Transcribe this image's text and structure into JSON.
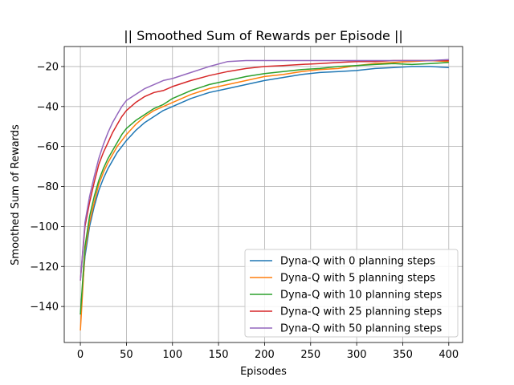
{
  "chart_data": {
    "type": "line",
    "title": "|| Smoothed Sum of Rewards per Episode ||",
    "xlabel": "Episodes",
    "ylabel": "Smoothed Sum of Rewards",
    "xlim": [
      -17.5,
      415
    ],
    "ylim": [
      -158,
      -10
    ],
    "xticks": [
      0,
      50,
      100,
      150,
      200,
      250,
      300,
      350,
      400
    ],
    "yticks": [
      -140,
      -120,
      -100,
      -80,
      -60,
      -40,
      -20
    ],
    "grid": true,
    "legend_position": "lower-right",
    "series": [
      {
        "name": "Dyna-Q with 0 planning steps",
        "color": "#1f77b4",
        "x": [
          0,
          5,
          10,
          15,
          20,
          25,
          30,
          35,
          40,
          45,
          50,
          60,
          70,
          80,
          90,
          100,
          120,
          140,
          160,
          180,
          200,
          220,
          240,
          260,
          280,
          300,
          320,
          340,
          360,
          380,
          400
        ],
        "y": [
          -144,
          -115,
          -100,
          -90,
          -82,
          -76,
          -71,
          -67,
          -63,
          -60,
          -57,
          -52,
          -48,
          -45,
          -42,
          -40,
          -36,
          -33,
          -31,
          -29,
          -27,
          -25.5,
          -24,
          -23,
          -22.5,
          -22,
          -21,
          -20.5,
          -20,
          -20,
          -20.5
        ]
      },
      {
        "name": "Dyna-Q with 5 planning steps",
        "color": "#ff7f0e",
        "x": [
          0,
          5,
          10,
          15,
          20,
          25,
          30,
          35,
          40,
          45,
          50,
          60,
          70,
          80,
          90,
          100,
          120,
          140,
          160,
          180,
          200,
          220,
          240,
          260,
          280,
          300,
          320,
          340,
          360,
          380,
          400
        ],
        "y": [
          -152,
          -112,
          -98,
          -88,
          -79,
          -73,
          -68,
          -64,
          -60,
          -57,
          -54,
          -49,
          -45,
          -42,
          -40,
          -38,
          -34,
          -31,
          -29,
          -27,
          -25,
          -24,
          -22.5,
          -21.5,
          -21,
          -19.5,
          -18.5,
          -18,
          -17.5,
          -17,
          -17.5
        ]
      },
      {
        "name": "Dyna-Q with 10 planning steps",
        "color": "#2ca02c",
        "x": [
          0,
          5,
          10,
          15,
          20,
          25,
          30,
          35,
          40,
          45,
          50,
          60,
          70,
          80,
          90,
          100,
          120,
          140,
          160,
          180,
          200,
          220,
          240,
          260,
          280,
          300,
          320,
          340,
          360,
          380,
          400
        ],
        "y": [
          -144,
          -110,
          -95,
          -85,
          -77,
          -71,
          -66,
          -62,
          -58,
          -54,
          -51,
          -47,
          -44,
          -41,
          -39,
          -36,
          -32,
          -29,
          -27,
          -25,
          -23.5,
          -22.5,
          -21.5,
          -21,
          -20,
          -19.5,
          -19,
          -18.5,
          -19,
          -18.5,
          -18
        ]
      },
      {
        "name": "Dyna-Q with 25 planning steps",
        "color": "#d62728",
        "x": [
          0,
          5,
          10,
          15,
          20,
          25,
          30,
          35,
          40,
          45,
          50,
          60,
          70,
          80,
          90,
          100,
          120,
          140,
          160,
          180,
          200,
          220,
          240,
          260,
          280,
          300,
          320,
          340,
          360,
          380,
          400
        ],
        "y": [
          -127,
          -100,
          -88,
          -78,
          -69,
          -63,
          -58,
          -53,
          -49,
          -45,
          -42,
          -38,
          -35,
          -33,
          -32,
          -30,
          -27,
          -24.5,
          -22.5,
          -21,
          -20,
          -19.5,
          -19,
          -18.5,
          -18,
          -17.5,
          -17.5,
          -17,
          -17,
          -17,
          -17
        ]
      },
      {
        "name": "Dyna-Q with 50 planning steps",
        "color": "#9467bd",
        "x": [
          0,
          5,
          10,
          15,
          20,
          25,
          30,
          35,
          40,
          45,
          50,
          60,
          70,
          80,
          90,
          100,
          120,
          140,
          160,
          180,
          200,
          220,
          240,
          260,
          280,
          300,
          320,
          340,
          360,
          380,
          400
        ],
        "y": [
          -127,
          -98,
          -85,
          -75,
          -66,
          -59,
          -53,
          -48,
          -44,
          -40,
          -37,
          -34,
          -31,
          -29,
          -27,
          -26,
          -23,
          -20,
          -17.5,
          -17,
          -17,
          -17,
          -17,
          -17,
          -17,
          -17,
          -17,
          -17,
          -17,
          -17,
          -16.5
        ]
      }
    ]
  }
}
